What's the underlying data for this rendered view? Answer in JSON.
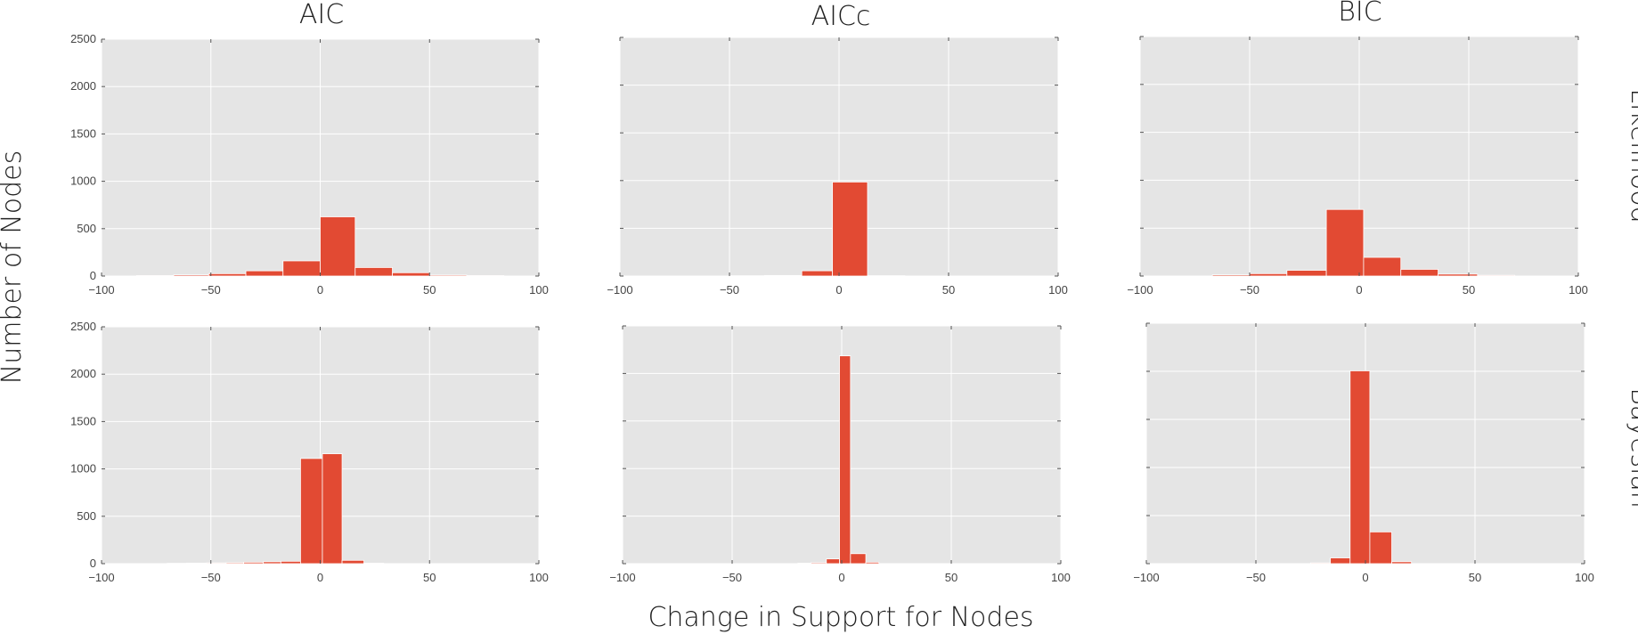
{
  "figure": {
    "xlabel": "Change in Support for Nodes",
    "ylabel": "Number of Nodes",
    "row_labels": [
      "Likelihood",
      "Bayesian"
    ],
    "column_titles": [
      "AIC",
      "AICc",
      "BIC"
    ]
  },
  "colors": {
    "bar": "#E24A33",
    "panel": "#E5E5E5",
    "grid": "#FFFFFF"
  },
  "chart_data": [
    {
      "type": "bar",
      "row": "Likelihood",
      "col": "AIC",
      "title": "AIC",
      "xlim": [
        -100,
        100
      ],
      "ylim": [
        0,
        2500
      ],
      "xticks": [
        "−100",
        "−50",
        "0",
        "50",
        "100"
      ],
      "yticks": [
        "0",
        "500",
        "1000",
        "1500",
        "2000",
        "2500"
      ],
      "show_xtick_labels": true,
      "show_ytick_labels": true,
      "bins": [
        {
          "x0": -84,
          "x1": -67,
          "y": 5
        },
        {
          "x0": -67,
          "x1": -51,
          "y": 12
        },
        {
          "x0": -51,
          "x1": -34,
          "y": 25
        },
        {
          "x0": -34,
          "x1": -17,
          "y": 55
        },
        {
          "x0": -17,
          "x1": 0,
          "y": 160
        },
        {
          "x0": 0,
          "x1": 16,
          "y": 625
        },
        {
          "x0": 16,
          "x1": 33,
          "y": 90
        },
        {
          "x0": 33,
          "x1": 50,
          "y": 35
        },
        {
          "x0": 50,
          "x1": 67,
          "y": 10
        },
        {
          "x0": 67,
          "x1": 84,
          "y": 5
        }
      ]
    },
    {
      "type": "bar",
      "row": "Likelihood",
      "col": "AICc",
      "title": "AICc",
      "xlim": [
        -100,
        100
      ],
      "ylim": [
        0,
        2500
      ],
      "xticks": [
        "−100",
        "−50",
        "0",
        "50",
        "100"
      ],
      "yticks": [
        "0",
        "500",
        "1000",
        "1500",
        "2000",
        "2500"
      ],
      "show_xtick_labels": true,
      "show_ytick_labels": false,
      "bins": [
        {
          "x0": -50,
          "x1": -34,
          "y": 3
        },
        {
          "x0": -34,
          "x1": -17,
          "y": 6
        },
        {
          "x0": -17,
          "x1": -3,
          "y": 55
        },
        {
          "x0": -3,
          "x1": 13,
          "y": 985
        },
        {
          "x0": 13,
          "x1": 30,
          "y": 4
        }
      ]
    },
    {
      "type": "bar",
      "row": "Likelihood",
      "col": "BIC",
      "title": "BIC",
      "xlim": [
        -100,
        100
      ],
      "ylim": [
        0,
        2500
      ],
      "xticks": [
        "−100",
        "−50",
        "0",
        "50",
        "100"
      ],
      "yticks": [
        "0",
        "500",
        "1000",
        "1500",
        "2000",
        "2500"
      ],
      "show_xtick_labels": true,
      "show_ytick_labels": false,
      "bins": [
        {
          "x0": -67,
          "x1": -50,
          "y": 12
        },
        {
          "x0": -50,
          "x1": -33,
          "y": 25
        },
        {
          "x0": -33,
          "x1": -15,
          "y": 60
        },
        {
          "x0": -15,
          "x1": 2,
          "y": 695
        },
        {
          "x0": 2,
          "x1": 19,
          "y": 195
        },
        {
          "x0": 19,
          "x1": 36,
          "y": 70
        },
        {
          "x0": 36,
          "x1": 54,
          "y": 20
        },
        {
          "x0": 54,
          "x1": 71,
          "y": 8
        }
      ]
    },
    {
      "type": "bar",
      "row": "Bayesian",
      "col": "AIC",
      "title": "",
      "xlim": [
        -100,
        100
      ],
      "ylim": [
        0,
        2500
      ],
      "xticks": [
        "−100",
        "−50",
        "0",
        "50",
        "100"
      ],
      "yticks": [
        "0",
        "500",
        "1000",
        "1500",
        "2000",
        "2500"
      ],
      "show_xtick_labels": true,
      "show_ytick_labels": true,
      "bins": [
        {
          "x0": -70,
          "x1": -61,
          "y": 4
        },
        {
          "x0": -61,
          "x1": -52,
          "y": 6
        },
        {
          "x0": -52,
          "x1": -43,
          "y": 8
        },
        {
          "x0": -43,
          "x1": -35,
          "y": 10
        },
        {
          "x0": -35,
          "x1": -26,
          "y": 15
        },
        {
          "x0": -26,
          "x1": -18,
          "y": 20
        },
        {
          "x0": -18,
          "x1": -9,
          "y": 25
        },
        {
          "x0": -9,
          "x1": 1,
          "y": 1110
        },
        {
          "x0": 1,
          "x1": 10,
          "y": 1160
        },
        {
          "x0": 10,
          "x1": 20,
          "y": 35
        },
        {
          "x0": 20,
          "x1": 29,
          "y": 5
        }
      ]
    },
    {
      "type": "bar",
      "row": "Bayesian",
      "col": "AICc",
      "title": "",
      "xlim": [
        -100,
        100
      ],
      "ylim": [
        0,
        2500
      ],
      "xticks": [
        "−100",
        "−50",
        "0",
        "50",
        "100"
      ],
      "yticks": [
        "0",
        "500",
        "1000",
        "1500",
        "2000",
        "2500"
      ],
      "show_xtick_labels": true,
      "show_ytick_labels": false,
      "bins": [
        {
          "x0": -20,
          "x1": -14,
          "y": 5
        },
        {
          "x0": -14,
          "x1": -7,
          "y": 10
        },
        {
          "x0": -7,
          "x1": -1,
          "y": 50
        },
        {
          "x0": -1,
          "x1": 4,
          "y": 2185
        },
        {
          "x0": 4,
          "x1": 11,
          "y": 105
        },
        {
          "x0": 11,
          "x1": 17,
          "y": 15
        }
      ]
    },
    {
      "type": "bar",
      "row": "Bayesian",
      "col": "BIC",
      "title": "",
      "xlim": [
        -100,
        100
      ],
      "ylim": [
        0,
        2500
      ],
      "xticks": [
        "−100",
        "−50",
        "0",
        "50",
        "100"
      ],
      "yticks": [
        "0",
        "500",
        "1000",
        "1500",
        "2000",
        "2500"
      ],
      "show_xtick_labels": true,
      "show_ytick_labels": false,
      "bins": [
        {
          "x0": -25,
          "x1": -16,
          "y": 8
        },
        {
          "x0": -16,
          "x1": -7,
          "y": 60
        },
        {
          "x0": -7,
          "x1": 2,
          "y": 2005
        },
        {
          "x0": 2,
          "x1": 12,
          "y": 330
        },
        {
          "x0": 12,
          "x1": 21,
          "y": 20
        }
      ]
    }
  ]
}
